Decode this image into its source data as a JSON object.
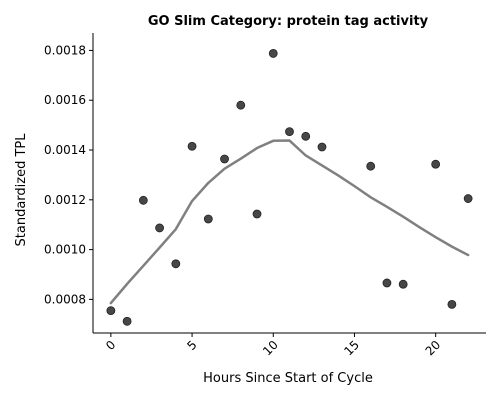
{
  "chart_data": {
    "type": "scatter",
    "title": "GO Slim Category: protein tag activity",
    "xlabel": "Hours Since Start of Cycle",
    "ylabel": "Standardized TPL",
    "xlim": [
      -1.1,
      23.1
    ],
    "ylim": [
      0.000665,
      0.00187
    ],
    "x_ticks": [
      0,
      5,
      10,
      15,
      20
    ],
    "x_tick_labels": [
      "0",
      "5",
      "10",
      "15",
      "20"
    ],
    "x_tick_rotation_deg": 45,
    "y_ticks": [
      0.0008,
      0.001,
      0.0012,
      0.0014,
      0.0016,
      0.0018
    ],
    "y_tick_labels": [
      "0.0008",
      "0.0010",
      "0.0012",
      "0.0014",
      "0.0016",
      "0.0018"
    ],
    "grid": false,
    "series": [
      {
        "type": "scatter",
        "color": "#333333",
        "points": [
          {
            "x": 0,
            "y": 0.000755
          },
          {
            "x": 1,
            "y": 0.000712
          },
          {
            "x": 2,
            "y": 0.001198
          },
          {
            "x": 3,
            "y": 0.001087
          },
          {
            "x": 4,
            "y": 0.000943
          },
          {
            "x": 5,
            "y": 0.001415
          },
          {
            "x": 6,
            "y": 0.001123
          },
          {
            "x": 7,
            "y": 0.001364
          },
          {
            "x": 8,
            "y": 0.00158
          },
          {
            "x": 9,
            "y": 0.001143
          },
          {
            "x": 10,
            "y": 0.001788
          },
          {
            "x": 11,
            "y": 0.001474
          },
          {
            "x": 12,
            "y": 0.001455
          },
          {
            "x": 13,
            "y": 0.001412
          },
          {
            "x": 16,
            "y": 0.001335
          },
          {
            "x": 17,
            "y": 0.000866
          },
          {
            "x": 18,
            "y": 0.000861
          },
          {
            "x": 20,
            "y": 0.001343
          },
          {
            "x": 21,
            "y": 0.00078
          },
          {
            "x": 22,
            "y": 0.001205
          }
        ]
      },
      {
        "type": "line",
        "color": "#808080",
        "points": [
          {
            "x": 0,
            "y": 0.000785
          },
          {
            "x": 1,
            "y": 0.000862
          },
          {
            "x": 2,
            "y": 0.000935
          },
          {
            "x": 3,
            "y": 0.001008
          },
          {
            "x": 4,
            "y": 0.001082
          },
          {
            "x": 5,
            "y": 0.001195
          },
          {
            "x": 6,
            "y": 0.001268
          },
          {
            "x": 7,
            "y": 0.001325
          },
          {
            "x": 8,
            "y": 0.001365
          },
          {
            "x": 9,
            "y": 0.001408
          },
          {
            "x": 10,
            "y": 0.001437
          },
          {
            "x": 11,
            "y": 0.001438
          },
          {
            "x": 12,
            "y": 0.001378
          },
          {
            "x": 13,
            "y": 0.001338
          },
          {
            "x": 14,
            "y": 0.001298
          },
          {
            "x": 15,
            "y": 0.001255
          },
          {
            "x": 16,
            "y": 0.00121
          },
          {
            "x": 17,
            "y": 0.001172
          },
          {
            "x": 18,
            "y": 0.001132
          },
          {
            "x": 19,
            "y": 0.00109
          },
          {
            "x": 20,
            "y": 0.00105
          },
          {
            "x": 21,
            "y": 0.001012
          },
          {
            "x": 22,
            "y": 0.000978
          }
        ]
      }
    ]
  }
}
